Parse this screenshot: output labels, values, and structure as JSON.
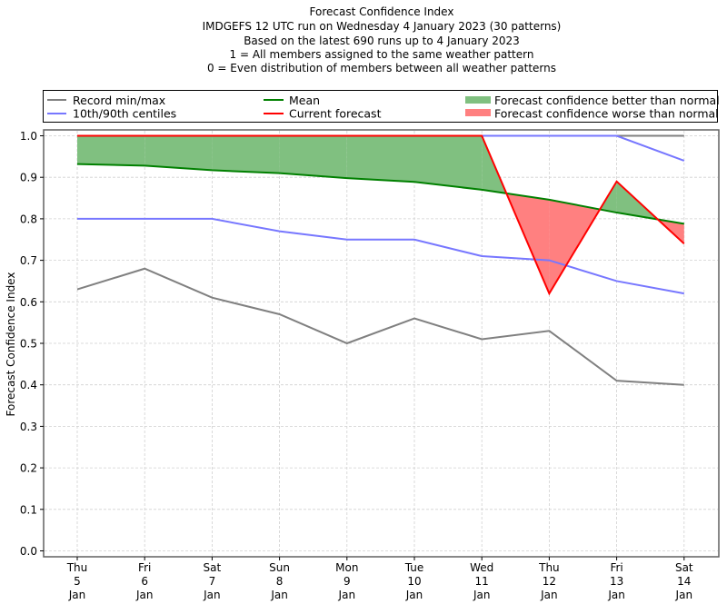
{
  "chart_data": {
    "type": "line",
    "title_lines": [
      "Forecast Confidence Index",
      "IMDGEFS 12 UTC run on Wednesday 4 January 2023 (30 patterns)",
      "Based on the latest 690 runs up to 4 January 2023",
      "1 = All members assigned to the same weather pattern",
      "0 = Even distribution of members between all weather patterns"
    ],
    "xlabel": "",
    "ylabel": "Forecast Confidence Index",
    "ylim": [
      0,
      1.0
    ],
    "yticks": [
      "0.0",
      "0.1",
      "0.2",
      "0.3",
      "0.4",
      "0.5",
      "0.6",
      "0.7",
      "0.8",
      "0.9",
      "1.0"
    ],
    "ytick_values": [
      0.0,
      0.1,
      0.2,
      0.3,
      0.4,
      0.5,
      0.6,
      0.7,
      0.8,
      0.9,
      1.0
    ],
    "grid": true,
    "legend_placement": "top",
    "categories": [
      {
        "day": "Thu",
        "date": "5",
        "month": "Jan"
      },
      {
        "day": "Fri",
        "date": "6",
        "month": "Jan"
      },
      {
        "day": "Sat",
        "date": "7",
        "month": "Jan"
      },
      {
        "day": "Sun",
        "date": "8",
        "month": "Jan"
      },
      {
        "day": "Mon",
        "date": "9",
        "month": "Jan"
      },
      {
        "day": "Tue",
        "date": "10",
        "month": "Jan"
      },
      {
        "day": "Wed",
        "date": "11",
        "month": "Jan"
      },
      {
        "day": "Thu",
        "date": "12",
        "month": "Jan"
      },
      {
        "day": "Fri",
        "date": "13",
        "month": "Jan"
      },
      {
        "day": "Sat",
        "date": "14",
        "month": "Jan"
      }
    ],
    "series": [
      {
        "name": "Record min",
        "color": "#808080",
        "values": [
          0.63,
          0.68,
          0.61,
          0.57,
          0.5,
          0.56,
          0.51,
          0.53,
          0.41,
          0.4
        ]
      },
      {
        "name": "Record max",
        "color": "#808080",
        "values": [
          1.0,
          1.0,
          1.0,
          1.0,
          1.0,
          1.0,
          1.0,
          1.0,
          1.0,
          1.0
        ]
      },
      {
        "name": "10th centile",
        "color": "#7777ff",
        "values": [
          0.8,
          0.8,
          0.8,
          0.77,
          0.75,
          0.75,
          0.71,
          0.7,
          0.65,
          0.62
        ]
      },
      {
        "name": "90th centile",
        "color": "#7777ff",
        "values": [
          1.0,
          1.0,
          1.0,
          1.0,
          1.0,
          1.0,
          1.0,
          1.0,
          1.0,
          0.94
        ]
      },
      {
        "name": "Mean",
        "color": "#008000",
        "values": [
          0.932,
          0.928,
          0.917,
          0.91,
          0.898,
          0.889,
          0.87,
          0.846,
          0.815,
          0.788
        ]
      },
      {
        "name": "Current forecast",
        "color": "#ff0000",
        "values": [
          1.0,
          1.0,
          1.0,
          1.0,
          1.0,
          1.0,
          1.0,
          0.62,
          0.89,
          0.74
        ]
      }
    ],
    "fill_colors": {
      "better": "#80c080",
      "worse": "#ff8080"
    },
    "legend": [
      {
        "label": "Record min/max",
        "kind": "line",
        "color": "#808080"
      },
      {
        "label": "10th/90th centiles",
        "kind": "line",
        "color": "#7777ff"
      },
      {
        "label": "Mean",
        "kind": "line",
        "color": "#008000"
      },
      {
        "label": "Current forecast",
        "kind": "line",
        "color": "#ff0000"
      },
      {
        "label": "Forecast confidence better than normal",
        "kind": "patch",
        "color": "#80c080"
      },
      {
        "label": "Forecast confidence worse than normal",
        "kind": "patch",
        "color": "#ff8080"
      }
    ]
  }
}
